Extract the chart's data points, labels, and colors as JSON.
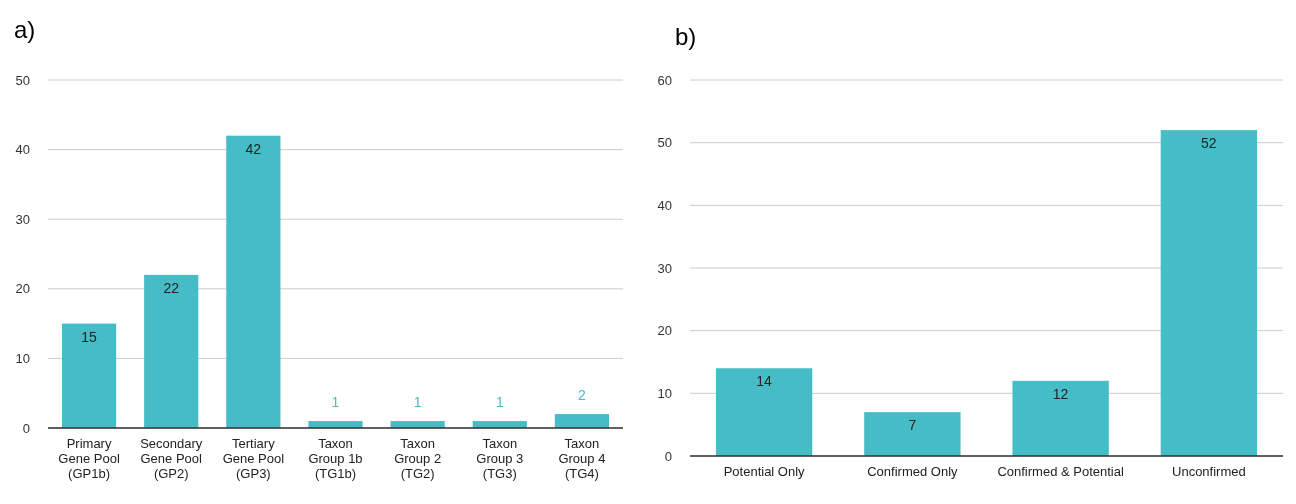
{
  "chart_data": [
    {
      "type": "bar",
      "title": "a)",
      "categories": [
        "Primary\nGene Pool\n(GP1b)",
        "Secondary\nGene Pool\n(GP2)",
        "Tertiary\nGene Pool\n(GP3)",
        "Taxon\nGroup 1b\n(TG1b)",
        "Taxon\nGroup 2\n(TG2)",
        "Taxon\nGroup 3\n(TG3)",
        "Taxon\nGroup 4\n(TG4)"
      ],
      "values": [
        15,
        22,
        42,
        1,
        1,
        1,
        2
      ],
      "color": "#46bdc6",
      "ylim": [
        0,
        50
      ],
      "yticks": [
        0,
        10,
        20,
        30,
        40,
        50
      ],
      "grid": "y",
      "data_labels": true
    },
    {
      "type": "bar",
      "title": "b)",
      "categories": [
        "Potential Only",
        "Confirmed Only",
        "Confirmed & Potential",
        "Unconfirmed"
      ],
      "values": [
        14,
        7,
        12,
        52
      ],
      "color": "#46bdc6",
      "ylim": [
        0,
        60
      ],
      "yticks": [
        0,
        10,
        20,
        30,
        40,
        50,
        60
      ],
      "grid": "y",
      "data_labels": true
    }
  ]
}
